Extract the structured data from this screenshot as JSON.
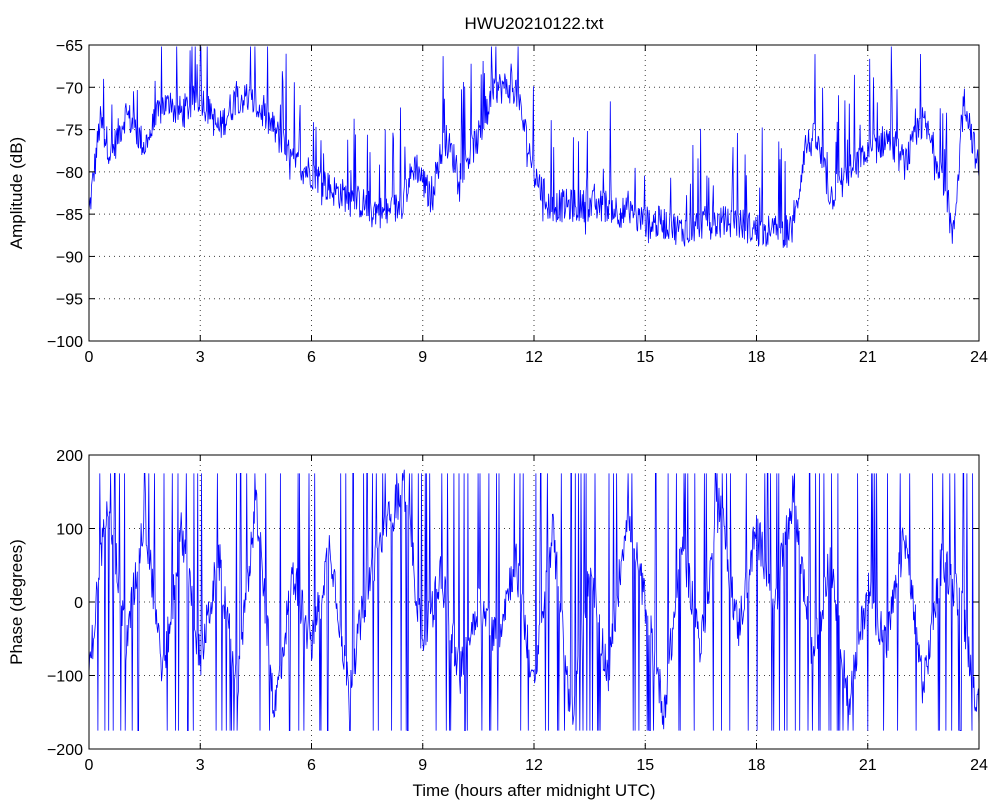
{
  "chart_data": [
    {
      "type": "line",
      "title": "HWU20210122.txt",
      "xlabel": "",
      "ylabel": "Amplitude (dB)",
      "xlim": [
        0,
        24
      ],
      "ylim": [
        -100,
        -65
      ],
      "xticks": [
        "0",
        "3",
        "6",
        "9",
        "12",
        "15",
        "18",
        "21",
        "24"
      ],
      "yticks": [
        "-65",
        "-70",
        "-75",
        "-80",
        "-85",
        "-90",
        "-95",
        "-100"
      ],
      "grid": true,
      "color": "#0000ff",
      "series": [
        {
          "x": [
            0,
            0.3,
            0.6,
            1.0,
            1.5,
            2.0,
            2.5,
            3.0,
            3.5,
            4.0,
            4.5,
            5.0,
            5.5,
            6.0,
            6.5,
            7.0,
            7.5,
            8.0,
            8.4,
            8.8,
            9.2,
            9.6,
            10.0,
            10.5,
            11.0,
            11.5,
            12.0,
            12.4,
            13.0,
            13.5,
            14.0,
            14.5,
            15.0,
            15.5,
            16.0,
            16.5,
            17.0,
            17.5,
            18.0,
            18.5,
            19.0,
            19.3,
            19.6,
            20.0,
            20.5,
            21.0,
            21.5,
            22.0,
            22.5,
            23.0,
            23.3,
            23.6,
            24.0
          ],
          "values": [
            -85,
            -74,
            -78,
            -73,
            -77,
            -72,
            -73,
            -71,
            -75,
            -71,
            -72,
            -75,
            -79,
            -80,
            -82,
            -83,
            -84,
            -85,
            -84,
            -79,
            -83,
            -76,
            -80,
            -76,
            -70,
            -70,
            -80,
            -84,
            -84,
            -84,
            -84,
            -85,
            -86,
            -86,
            -87,
            -86,
            -86,
            -86,
            -87,
            -87,
            -87,
            -77,
            -76,
            -83,
            -80,
            -78,
            -76,
            -79,
            -74,
            -80,
            -88,
            -71,
            -80
          ]
        }
      ]
    },
    {
      "type": "line",
      "title": "",
      "xlabel": "Time (hours after midnight UTC)",
      "ylabel": "Phase (degrees)",
      "xlim": [
        0,
        24
      ],
      "ylim": [
        -200,
        200
      ],
      "xticks": [
        "0",
        "3",
        "6",
        "9",
        "12",
        "15",
        "18",
        "21",
        "24"
      ],
      "yticks": [
        "200",
        "100",
        "0",
        "-100",
        "-200"
      ],
      "grid": true,
      "color": "#0000ff",
      "series": [
        {
          "x": [
            0,
            0.5,
            1.0,
            1.5,
            2.0,
            2.5,
            3.0,
            3.5,
            4.0,
            4.5,
            5.0,
            5.5,
            6.0,
            6.5,
            7.0,
            7.5,
            8.0,
            8.5,
            9.0,
            9.5,
            10.0,
            10.5,
            11.0,
            11.5,
            12.0,
            12.5,
            13.0,
            13.5,
            14.0,
            14.5,
            15.0,
            15.5,
            16.0,
            16.5,
            17.0,
            17.5,
            18.0,
            18.5,
            19.0,
            19.5,
            20.0,
            20.5,
            21.0,
            21.5,
            22.0,
            22.5,
            23.0,
            23.5,
            24.0
          ],
          "values": [
            -100,
            150,
            -60,
            120,
            -100,
            100,
            -80,
            60,
            -120,
            140,
            -150,
            40,
            -60,
            80,
            -120,
            20,
            100,
            160,
            -60,
            40,
            -100,
            0,
            -50,
            60,
            -120,
            100,
            -160,
            40,
            -100,
            120,
            0,
            -150,
            80,
            -60,
            140,
            -40,
            100,
            0,
            150,
            -80,
            60,
            -140,
            20,
            -60,
            90,
            -120,
            60,
            0,
            -150
          ]
        }
      ]
    }
  ]
}
